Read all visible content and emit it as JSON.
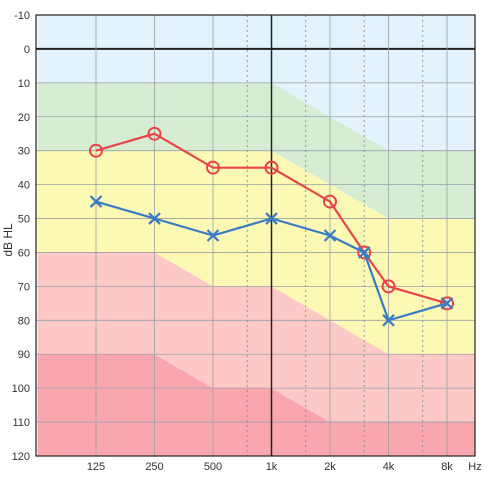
{
  "chart_data": {
    "type": "line",
    "title": "",
    "ylabel": "dB HL",
    "xunit": "Hz",
    "ylim": [
      -10,
      120
    ],
    "y_inverted": true,
    "y_ticks": [
      "-10",
      "0",
      "10",
      "20",
      "30",
      "40",
      "50",
      "60",
      "70",
      "80",
      "90",
      "100",
      "110",
      "120"
    ],
    "x_ticks": [
      {
        "label": "125",
        "hz": 125
      },
      {
        "label": "250",
        "hz": 250
      },
      {
        "label": "500",
        "hz": 500
      },
      {
        "label": "1k",
        "hz": 1000
      },
      {
        "label": "2k",
        "hz": 2000
      },
      {
        "label": "4k",
        "hz": 4000
      },
      {
        "label": "8k",
        "hz": 8000
      }
    ],
    "x_dotted_hz": [
      750,
      1500,
      3000,
      6000
    ],
    "grid": true,
    "zones": [
      {
        "color": "#e3f2fc",
        "upper": [
          [
            62.5,
            -10
          ],
          [
            16000,
            -10
          ]
        ],
        "lower": [
          [
            62.5,
            10
          ],
          [
            1000,
            10
          ],
          [
            4000,
            30
          ],
          [
            16000,
            30
          ]
        ]
      },
      {
        "color": "#d6edd3",
        "upper": [
          [
            62.5,
            10
          ],
          [
            1000,
            10
          ],
          [
            4000,
            30
          ],
          [
            16000,
            30
          ]
        ],
        "lower": [
          [
            62.5,
            30
          ],
          [
            1000,
            30
          ],
          [
            4000,
            50
          ],
          [
            16000,
            50
          ]
        ]
      },
      {
        "color": "#fbf9b4",
        "upper": [
          [
            62.5,
            30
          ],
          [
            1000,
            30
          ],
          [
            4000,
            50
          ],
          [
            16000,
            50
          ]
        ],
        "lower": [
          [
            62.5,
            60
          ],
          [
            250,
            60
          ],
          [
            500,
            70
          ],
          [
            1000,
            70
          ],
          [
            4000,
            90
          ],
          [
            16000,
            90
          ]
        ]
      },
      {
        "color": "#fcc9c7",
        "upper": [
          [
            62.5,
            60
          ],
          [
            250,
            60
          ],
          [
            500,
            70
          ],
          [
            1000,
            70
          ],
          [
            4000,
            90
          ],
          [
            16000,
            90
          ]
        ],
        "lower": [
          [
            62.5,
            90
          ],
          [
            250,
            90
          ],
          [
            500,
            100
          ],
          [
            1000,
            100
          ],
          [
            2000,
            110
          ],
          [
            16000,
            110
          ]
        ]
      },
      {
        "color": "#f9a6ae",
        "upper": [
          [
            62.5,
            90
          ],
          [
            250,
            90
          ],
          [
            500,
            100
          ],
          [
            1000,
            100
          ],
          [
            2000,
            110
          ],
          [
            16000,
            110
          ]
        ],
        "lower": [
          [
            62.5,
            120
          ],
          [
            16000,
            120
          ]
        ]
      }
    ],
    "series": [
      {
        "marker": "circle",
        "color": "#e8454a",
        "points": [
          {
            "hz": 125,
            "db": 30
          },
          {
            "hz": 250,
            "db": 25
          },
          {
            "hz": 500,
            "db": 35
          },
          {
            "hz": 1000,
            "db": 35
          },
          {
            "hz": 2000,
            "db": 45
          },
          {
            "hz": 3000,
            "db": 60
          },
          {
            "hz": 4000,
            "db": 70
          },
          {
            "hz": 8000,
            "db": 75
          }
        ]
      },
      {
        "marker": "x",
        "color": "#3b7bc4",
        "points": [
          {
            "hz": 125,
            "db": 45
          },
          {
            "hz": 250,
            "db": 50
          },
          {
            "hz": 500,
            "db": 55
          },
          {
            "hz": 1000,
            "db": 50
          },
          {
            "hz": 2000,
            "db": 55
          },
          {
            "hz": 3000,
            "db": 60
          },
          {
            "hz": 4000,
            "db": 80
          },
          {
            "hz": 8000,
            "db": 75
          }
        ]
      }
    ]
  }
}
